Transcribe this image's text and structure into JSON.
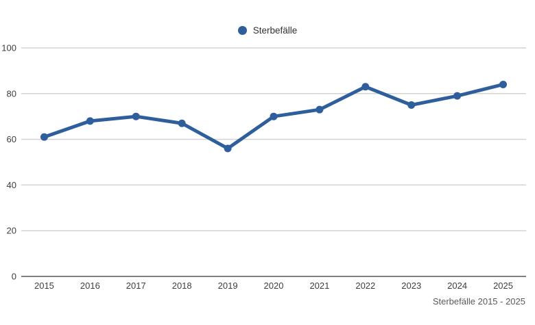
{
  "legend": {
    "label": "Sterbefälle",
    "marker_color": "#2e5f9c"
  },
  "caption": "Sterbefälle 2015 - 2025",
  "chart_data": {
    "type": "line",
    "title": "",
    "categories": [
      "2015",
      "2016",
      "2017",
      "2018",
      "2019",
      "2020",
      "2021",
      "2022",
      "2023",
      "2024",
      "2025"
    ],
    "series": [
      {
        "name": "Sterbefälle",
        "color": "#2e5f9c",
        "values": [
          61,
          68,
          70,
          67,
          56,
          70,
          73,
          83,
          75,
          79,
          84
        ]
      }
    ],
    "xlabel": "",
    "ylabel": "",
    "ylim": [
      0,
      100
    ],
    "y_ticks": [
      0,
      20,
      40,
      60,
      80,
      100
    ],
    "grid": "horizontal",
    "legend_position": "top-center",
    "colors": {
      "gridline": "#d2d2d2",
      "axis_line": "#7f7f7f",
      "tick_label": "#3d3d3d",
      "caption": "#595959"
    }
  }
}
